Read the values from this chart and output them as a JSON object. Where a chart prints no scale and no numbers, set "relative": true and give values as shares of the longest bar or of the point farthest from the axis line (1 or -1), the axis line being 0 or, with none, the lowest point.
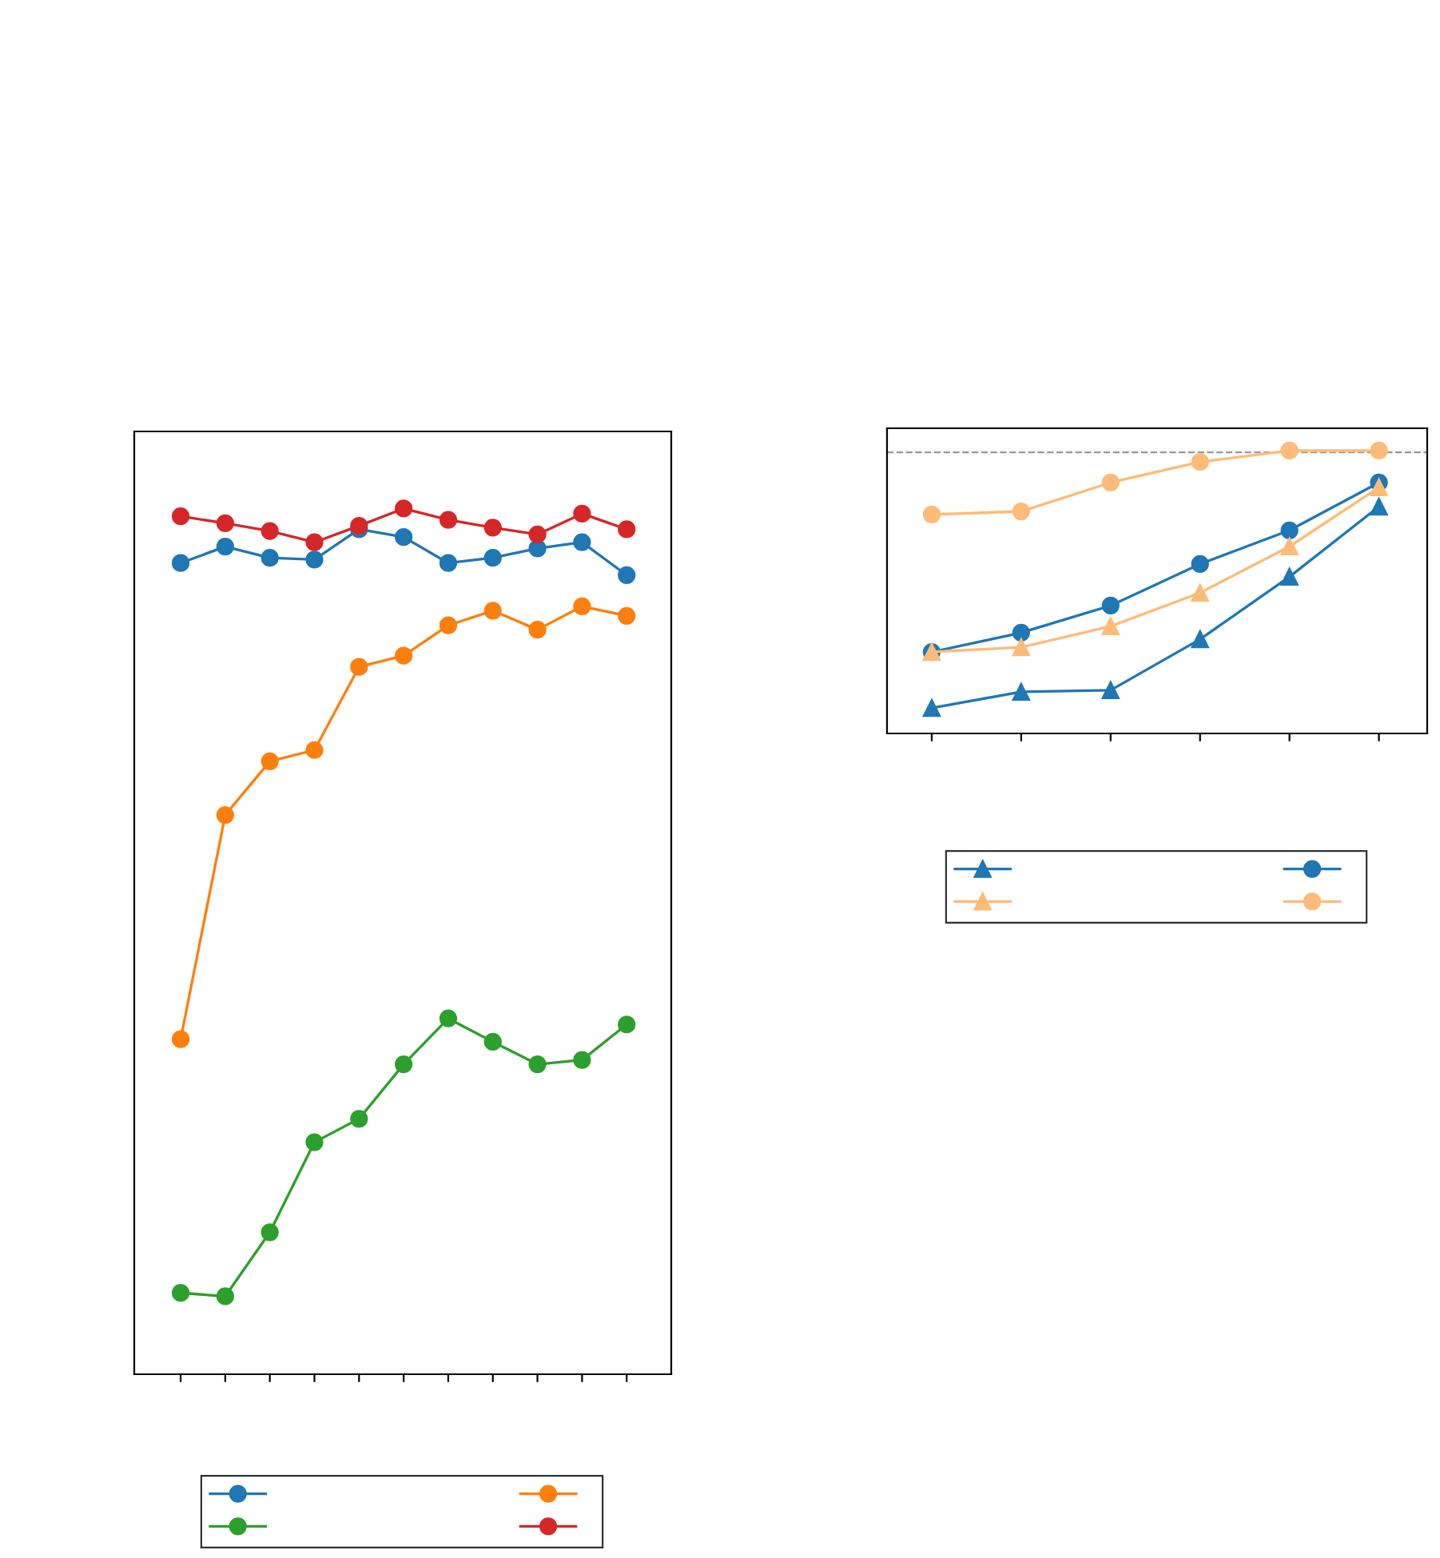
{
  "chart_data": [
    {
      "type": "line",
      "relative": true,
      "categories": [
        null,
        null,
        null,
        null,
        null,
        null,
        null,
        null,
        null,
        null,
        null
      ],
      "marker": "circle",
      "grid": false,
      "series": [
        {
          "color": "#1f77b4",
          "values": [
            0.937,
            0.956,
            0.943,
            0.941,
            0.976,
            0.967,
            0.937,
            0.943,
            0.954,
            0.961,
            0.923
          ]
        },
        {
          "color": "#ff7f0e",
          "values": [
            0.387,
            0.646,
            0.708,
            0.721,
            0.817,
            0.83,
            0.865,
            0.882,
            0.86,
            0.887,
            0.876
          ]
        },
        {
          "color": "#2ca02c",
          "values": [
            0.094,
            0.09,
            0.164,
            0.268,
            0.295,
            0.358,
            0.411,
            0.384,
            0.358,
            0.363,
            0.404
          ]
        },
        {
          "color": "#d62728",
          "values": [
            0.991,
            0.983,
            0.974,
            0.961,
            0.98,
            1.0,
            0.987,
            0.978,
            0.97,
            0.994,
            0.976
          ]
        }
      ]
    },
    {
      "type": "line",
      "relative": true,
      "categories": [
        null,
        null,
        null,
        null,
        null,
        null
      ],
      "grid": false,
      "ref_lines": [
        {
          "axis": "y",
          "value": 0.994,
          "color": "#999999",
          "line_style": "dashed"
        }
      ],
      "series": [
        {
          "color": "#1f77b4",
          "marker": "triangle",
          "values": [
            0.09,
            0.147,
            0.153,
            0.333,
            0.554,
            0.802
          ]
        },
        {
          "color": "#1f77b4",
          "marker": "circle",
          "values": [
            0.288,
            0.356,
            0.452,
            0.599,
            0.718,
            0.887
          ]
        },
        {
          "color": "#ffbb78",
          "marker": "triangle",
          "values": [
            0.288,
            0.305,
            0.379,
            0.497,
            0.661,
            0.87
          ]
        },
        {
          "color": "#ffbb78",
          "marker": "circle",
          "values": [
            0.774,
            0.785,
            0.887,
            0.96,
            1.0,
            1.0
          ]
        }
      ]
    }
  ]
}
